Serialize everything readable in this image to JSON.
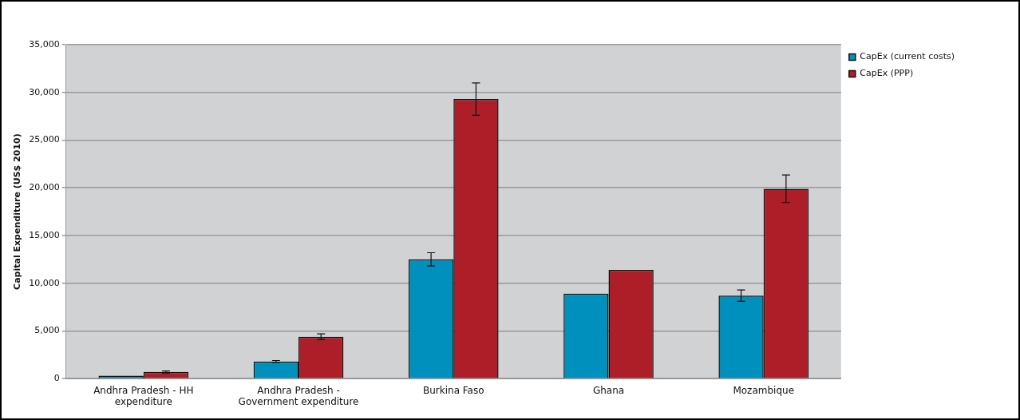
{
  "chart_data": {
    "type": "bar",
    "ylabel": "Capital Expenditure (US$ 2010)",
    "categories": [
      "Andhra Pradesh - HH expenditure",
      "Andhra Pradesh - Government expenditure",
      "Burkina Faso",
      "Ghana",
      "Mozambique"
    ],
    "series": [
      {
        "name": "CapEx (current costs)",
        "color": "#0090bd",
        "values": [
          300,
          1800,
          12500,
          8900,
          8700
        ],
        "errors": [
          null,
          100,
          700,
          null,
          600
        ]
      },
      {
        "name": "CapEx (PPP)",
        "color": "#ad1e28",
        "values": [
          700,
          4400,
          29300,
          11400,
          19900
        ],
        "errors": [
          100,
          300,
          1700,
          null,
          1450
        ]
      }
    ],
    "ylim": [
      0,
      35000
    ],
    "yticks": [
      0,
      {
        "value": 5000,
        "label": "5,000"
      },
      {
        "value": 10000,
        "label": "10,000"
      },
      {
        "value": 15000,
        "label": "15,000"
      },
      {
        "value": 20000,
        "label": "20,000"
      },
      {
        "value": 25000,
        "label": "25,000"
      },
      {
        "value": 30000,
        "label": "30,000"
      },
      {
        "value": 35000,
        "label": "35,000"
      }
    ],
    "grid": "y",
    "legend": "top right"
  }
}
